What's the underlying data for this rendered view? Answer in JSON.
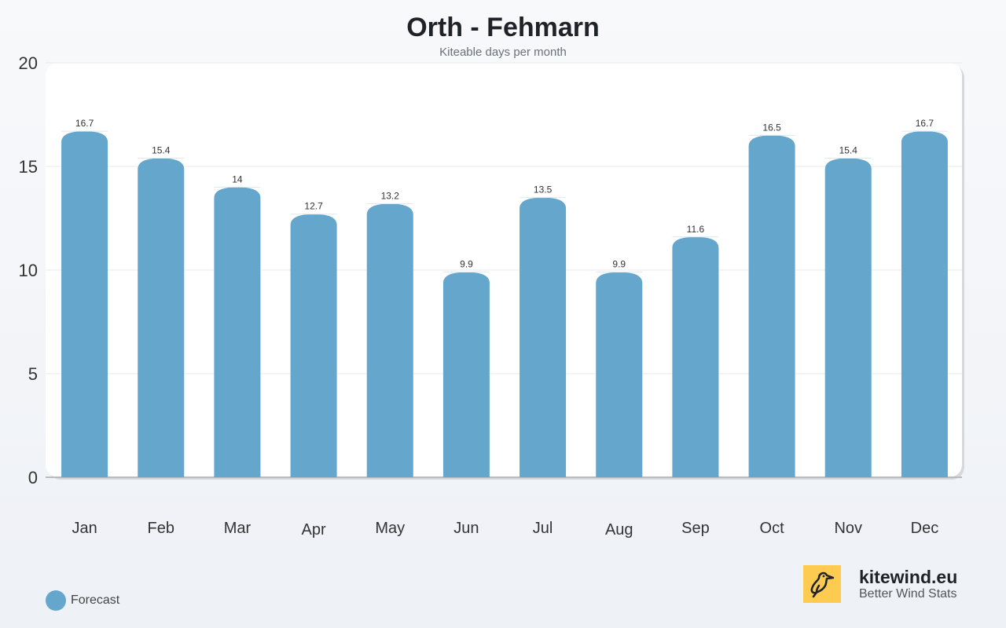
{
  "chart_data": {
    "type": "bar",
    "title": "Orth - Fehmarn",
    "subtitle": "Kiteable days per month",
    "categories": [
      "Jan",
      "Feb",
      "Mar",
      "Apr",
      "May",
      "Jun",
      "Jul",
      "Aug",
      "Sep",
      "Oct",
      "Nov",
      "Dec"
    ],
    "series": [
      {
        "name": "Forecast",
        "values": [
          16.7,
          15.4,
          14,
          12.7,
          13.2,
          9.9,
          13.5,
          9.9,
          11.6,
          16.5,
          15.4,
          16.7
        ],
        "color": "#65a6cc"
      }
    ],
    "ylim": [
      0,
      20
    ],
    "yticks": [
      0,
      5,
      10,
      15,
      20
    ],
    "grid": true,
    "legend": "bottom-left"
  },
  "brand": {
    "name": "kitewind.eu",
    "tagline": "Better Wind Stats",
    "logo_color": "#fdcb4f",
    "icon": "bird-icon"
  }
}
